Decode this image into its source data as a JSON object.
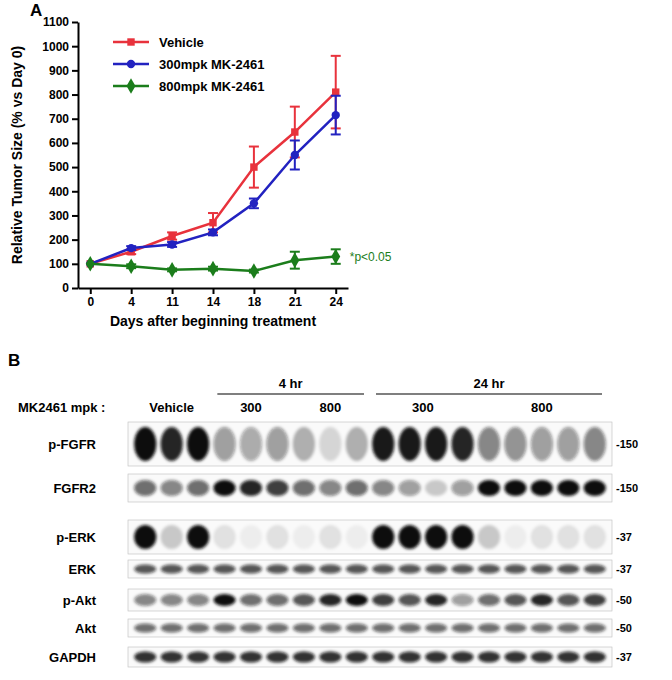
{
  "chart_data": {
    "type": "line",
    "panel_label": "A",
    "xlabel": "Days after beginning treatment",
    "ylabel": "Relative Tumor Size (% vs Day 0)",
    "categories": [
      "0",
      "4",
      "11",
      "14",
      "18",
      "21",
      "24"
    ],
    "ylim": [
      0,
      1100
    ],
    "yticks": [
      0,
      100,
      200,
      300,
      400,
      500,
      600,
      700,
      800,
      900,
      1000,
      1100
    ],
    "legend": "top-left",
    "series": [
      {
        "name": "Vehicle",
        "color": "#e8323c",
        "marker": "square",
        "values": [
          100,
          150,
          215,
          270,
          500,
          645,
          810
        ],
        "errors": [
          0,
          10,
          15,
          40,
          85,
          105,
          150
        ]
      },
      {
        "name": "300mpk MK-2461",
        "color": "#2222c0",
        "marker": "circle",
        "values": [
          100,
          165,
          180,
          230,
          350,
          550,
          715
        ],
        "errors": [
          0,
          8,
          10,
          12,
          20,
          60,
          80
        ]
      },
      {
        "name": "800mpk MK-2461",
        "color": "#1b7d1b",
        "marker": "diamond",
        "values": [
          100,
          90,
          75,
          80,
          70,
          115,
          130
        ],
        "errors": [
          0,
          8,
          6,
          8,
          6,
          35,
          30
        ],
        "annotation": "*p<0.05"
      }
    ]
  },
  "blot": {
    "panel_label": "B",
    "header": "MK2461 mpk :",
    "vehicle": {
      "label": "Vehicle",
      "lanes": 3
    },
    "timepoints": [
      {
        "label": "4 hr",
        "doses": [
          {
            "label": "300",
            "lanes": 3
          },
          {
            "label": "800",
            "lanes": 3
          }
        ]
      },
      {
        "label": "24 hr",
        "doses": [
          {
            "label": "300",
            "lanes": 4
          },
          {
            "label": "800",
            "lanes": 5
          }
        ]
      }
    ],
    "rows": [
      {
        "label": "p-FGFR",
        "mw": "-150",
        "intensity": [
          1,
          0.9,
          1,
          0.4,
          0.35,
          0.4,
          0.3,
          0.15,
          0.3,
          0.95,
          0.95,
          0.95,
          0.9,
          0.5,
          0.45,
          0.4,
          0.4,
          0.5
        ]
      },
      {
        "label": "FGFR2",
        "mw": "-150",
        "intensity": [
          0.6,
          0.5,
          0.6,
          1,
          0.9,
          0.8,
          0.6,
          0.5,
          0.6,
          0.5,
          0.4,
          0.2,
          0.4,
          1,
          1,
          1,
          1,
          1
        ]
      },
      {
        "label": "p-ERK",
        "mw": "-37",
        "intensity": [
          1,
          0.2,
          1,
          0.1,
          0.05,
          0.1,
          0.05,
          0.1,
          0.05,
          1,
          1,
          1,
          1,
          0.2,
          0.05,
          0.1,
          0.1,
          0.1
        ]
      },
      {
        "label": "ERK",
        "mw": "-37",
        "intensity": [
          0.7,
          0.7,
          0.7,
          0.7,
          0.7,
          0.7,
          0.7,
          0.7,
          0.7,
          0.7,
          0.7,
          0.7,
          0.7,
          0.7,
          0.7,
          0.7,
          0.7,
          0.7
        ]
      },
      {
        "label": "p-Akt",
        "mw": "-50",
        "intensity": [
          0.5,
          0.5,
          0.5,
          1,
          0.6,
          0.6,
          0.7,
          0.9,
          1,
          0.8,
          0.7,
          0.9,
          0.4,
          0.6,
          0.7,
          0.9,
          0.7,
          0.8
        ]
      },
      {
        "label": "Akt",
        "mw": "-50",
        "intensity": [
          0.6,
          0.6,
          0.6,
          0.6,
          0.6,
          0.6,
          0.6,
          0.6,
          0.6,
          0.6,
          0.6,
          0.6,
          0.6,
          0.6,
          0.6,
          0.6,
          0.6,
          0.6
        ]
      },
      {
        "label": "GAPDH",
        "mw": "-37",
        "intensity": [
          0.85,
          0.85,
          0.85,
          0.85,
          0.85,
          0.85,
          0.85,
          0.85,
          0.85,
          0.85,
          0.85,
          0.85,
          0.85,
          0.85,
          0.85,
          0.85,
          0.85,
          0.85
        ]
      }
    ]
  }
}
